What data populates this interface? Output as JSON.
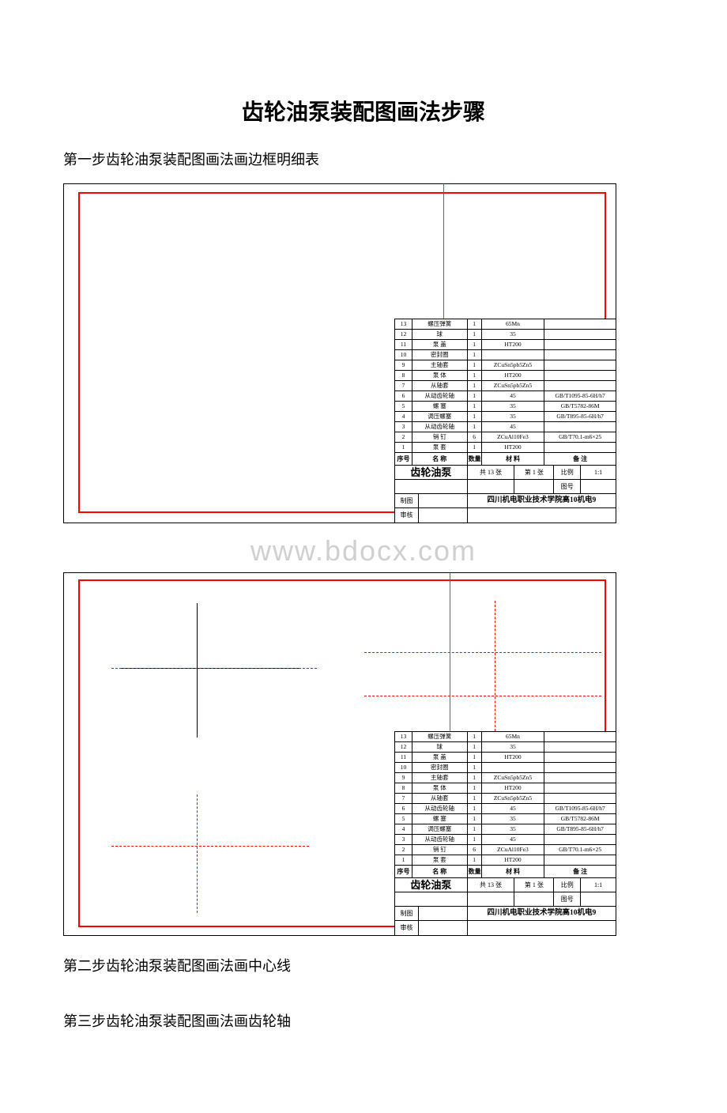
{
  "title": "齿轮油泵装配图画法步骤",
  "step1_heading": "第一步齿轮油泵装配图画法画边框明细表",
  "step2_heading": "第二步齿轮油泵装配图画法画中心线",
  "step3_heading": "第三步齿轮油泵装配图画法画齿轮轴",
  "watermark": "www.bdocx.com",
  "parts_header": {
    "idx": "序号",
    "name": "名 称",
    "qty": "数量",
    "mat": "材 料",
    "rem": "备 注"
  },
  "parts": [
    {
      "idx": "13",
      "name": "螺压弹簧",
      "qty": "1",
      "mat": "65Mn",
      "rem": ""
    },
    {
      "idx": "12",
      "name": "球",
      "qty": "1",
      "mat": "35",
      "rem": ""
    },
    {
      "idx": "11",
      "name": "泵 盖",
      "qty": "1",
      "mat": "HT200",
      "rem": ""
    },
    {
      "idx": "10",
      "name": "密封圈",
      "qty": "1",
      "mat": "",
      "rem": ""
    },
    {
      "idx": "9",
      "name": "主轴套",
      "qty": "1",
      "mat": "ZCuSn5pb5Zn5",
      "rem": ""
    },
    {
      "idx": "8",
      "name": "泵 体",
      "qty": "1",
      "mat": "HT200",
      "rem": ""
    },
    {
      "idx": "7",
      "name": "从轴套",
      "qty": "1",
      "mat": "ZCuSn5pb5Zn5",
      "rem": ""
    },
    {
      "idx": "6",
      "name": "从动齿轮轴",
      "qty": "1",
      "mat": "45",
      "rem": "GB/T1095-85-6H/h7"
    },
    {
      "idx": "5",
      "name": "螺 塞",
      "qty": "1",
      "mat": "35",
      "rem": "GB/T5782-86M"
    },
    {
      "idx": "4",
      "name": "调压螺塞",
      "qty": "1",
      "mat": "35",
      "rem": "GB/T895-85-6H/h7"
    },
    {
      "idx": "3",
      "name": "从动齿轮轴",
      "qty": "1",
      "mat": "45",
      "rem": ""
    },
    {
      "idx": "2",
      "name": "销 钉",
      "qty": "6",
      "mat": "ZCuAl10Fe3",
      "rem": "GB/T70.1-m6×25"
    },
    {
      "idx": "1",
      "name": "泵 套",
      "qty": "1",
      "mat": "HT200",
      "rem": ""
    }
  ],
  "titleblock": {
    "product": "齿轮油泵",
    "sheets_label1": "共 13 张",
    "sheets_label2": "第 1 张",
    "scale_label": "比例",
    "scale_value": "1:1",
    "drawno_label": "图号",
    "row_draw": "制图",
    "row_check": "审核",
    "school": "四川机电职业技术学院高10机电9"
  },
  "colors": {
    "frame_red": "#ff0000",
    "magenta": "#ff00ff",
    "black": "#000000",
    "watermark": "#d0d0d0",
    "page_bg": "#ffffff"
  }
}
